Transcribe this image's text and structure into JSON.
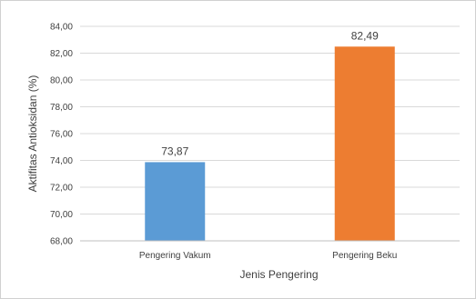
{
  "chart_data": {
    "type": "bar",
    "title": "",
    "xlabel": "Jenis Pengering",
    "ylabel": "Aktifitas Antioksidan (%)",
    "categories": [
      "Pengering Vakum",
      "Pengering Beku"
    ],
    "values": [
      73.87,
      82.49
    ],
    "data_labels": [
      "73,87",
      "82,49"
    ],
    "bar_colors": [
      "#5b9bd5",
      "#ed7d31"
    ],
    "ylim": [
      68,
      84
    ],
    "yticks": [
      68,
      70,
      72,
      74,
      76,
      78,
      80,
      82,
      84
    ],
    "ytick_labels": [
      "68,00",
      "70,00",
      "72,00",
      "74,00",
      "76,00",
      "78,00",
      "80,00",
      "82,00",
      "84,00"
    ],
    "grid": true,
    "legend": "none"
  }
}
